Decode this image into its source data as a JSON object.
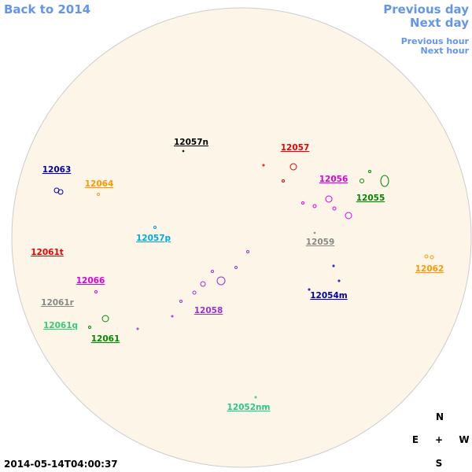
{
  "nav": {
    "back": "Back to 2014",
    "previous_day": "Previous day",
    "next_day": "Next day",
    "previous_hour": "Previous hour",
    "next_hour": "Next hour"
  },
  "regions": [
    "12057n",
    "12057",
    "12063",
    "12064",
    "12056",
    "12055",
    "12057p",
    "12059",
    "12061t",
    "12062",
    "12066",
    "12054m",
    "12061r",
    "12058",
    "12061q",
    "12061",
    "12052nm"
  ],
  "compass": {
    "north": "N",
    "east": "E",
    "center": "+",
    "west": "W",
    "south": "S"
  },
  "timestamp": "2014-05-14T04:00:37"
}
